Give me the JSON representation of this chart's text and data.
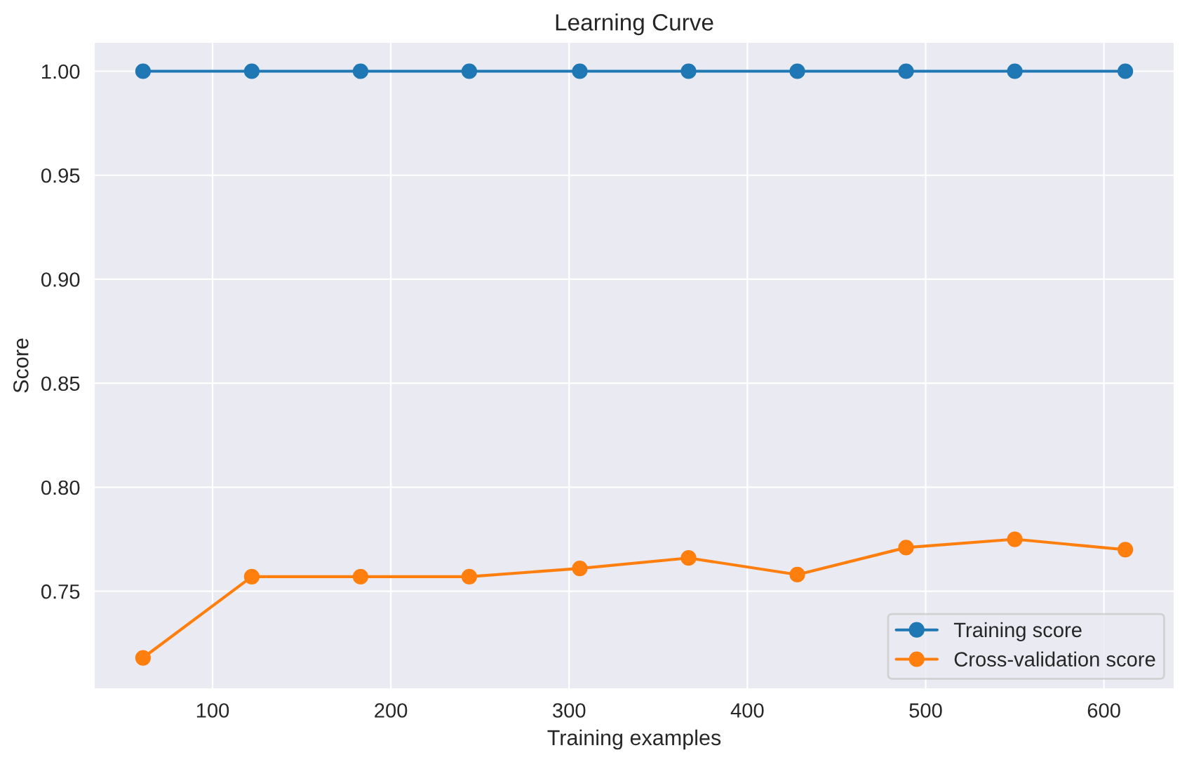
{
  "chart_data": {
    "type": "line",
    "title": "Learning Curve",
    "xlabel": "Training examples",
    "ylabel": "Score",
    "x": [
      61,
      122,
      183,
      244,
      306,
      367,
      428,
      489,
      550,
      612
    ],
    "series": [
      {
        "name": "Training score",
        "color": "#1f77b4",
        "values": [
          1.0,
          1.0,
          1.0,
          1.0,
          1.0,
          1.0,
          1.0,
          1.0,
          1.0,
          1.0
        ]
      },
      {
        "name": "Cross-validation score",
        "color": "#ff7f0e",
        "values": [
          0.718,
          0.757,
          0.757,
          0.757,
          0.761,
          0.766,
          0.758,
          0.771,
          0.775,
          0.77
        ]
      }
    ],
    "xlim": [
      33.5,
      639.5
    ],
    "ylim": [
      0.703,
      1.014
    ],
    "xticks": [
      100,
      200,
      300,
      400,
      500,
      600
    ],
    "yticks": [
      {
        "value": 0.75,
        "label": "0.75"
      },
      {
        "value": 0.8,
        "label": "0.80"
      },
      {
        "value": 0.85,
        "label": "0.85"
      },
      {
        "value": 0.9,
        "label": "0.90"
      },
      {
        "value": 0.95,
        "label": "0.95"
      },
      {
        "value": 1.0,
        "label": "1.00"
      }
    ],
    "grid": true,
    "legend": "lower right",
    "marker": "circle",
    "line_style": "solid"
  }
}
